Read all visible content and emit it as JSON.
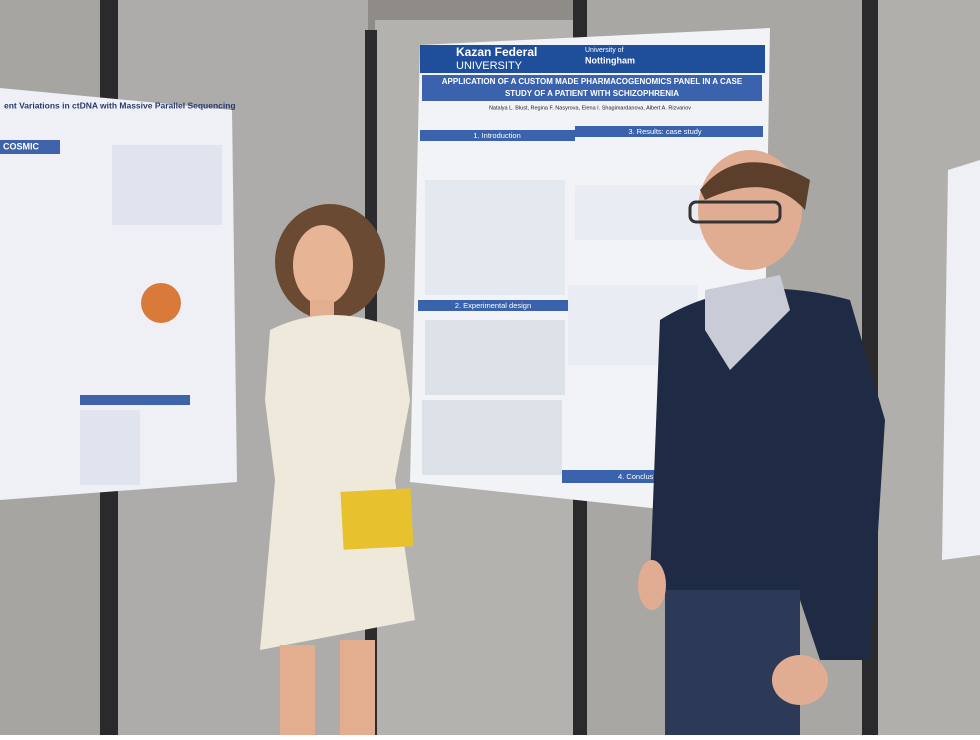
{
  "posters": [
    {
      "title": "ent Variations in ctDNA with Massive Parallel Sequencing",
      "labels": [
        "COSMIC"
      ]
    },
    {
      "header": [
        "Kazan Federal",
        "UNIVERSITY",
        "University of",
        "Nottingham"
      ],
      "title_lines": [
        "APPLICATION OF A CUSTOM MADE PHARMACOGENOMICS PANEL IN A CASE",
        "STUDY OF A PATIENT WITH SCHIZOPHRENIA"
      ],
      "authors": "Natalya L. Blust, Regina F. Nasyrova, Elena I. Shagimardanova, Albert A. Rizvanov",
      "sections": [
        "1. Introduction",
        "3. Results: case study",
        "2. Experimental design",
        "4. Conclus"
      ]
    }
  ]
}
